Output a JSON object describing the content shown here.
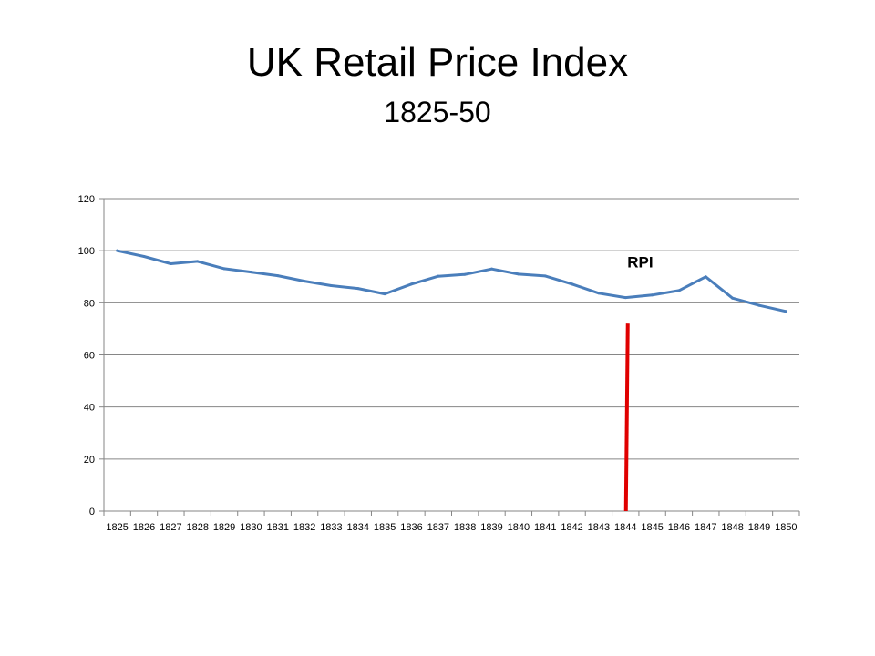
{
  "slide": {
    "title": "UK Retail Price Index",
    "subtitle": "1825-50"
  },
  "chart_data": {
    "type": "line",
    "x": [
      "1825",
      "1826",
      "1827",
      "1828",
      "1829",
      "1830",
      "1831",
      "1832",
      "1833",
      "1834",
      "1835",
      "1836",
      "1837",
      "1838",
      "1839",
      "1840",
      "1841",
      "1842",
      "1843",
      "1844",
      "1845",
      "1846",
      "1847",
      "1848",
      "1849",
      "1850"
    ],
    "series": [
      {
        "name": "RPI",
        "values": [
          100,
          97.8,
          95,
          95.9,
          93.1,
          91.8,
          90.4,
          88.3,
          86.6,
          85.5,
          83.4,
          87.2,
          90.2,
          90.9,
          93,
          91,
          90.3,
          87.2,
          83.7,
          82,
          83,
          84.7,
          90,
          81.8,
          79,
          76.7
        ],
        "color": "#4a7ebb"
      }
    ],
    "ylim": [
      0,
      120
    ],
    "yticks": [
      0,
      20,
      40,
      60,
      80,
      100,
      120
    ],
    "grid": true,
    "legend": "none",
    "annotations": [
      {
        "text": "RPI",
        "kind": "series-label"
      },
      {
        "kind": "vertical-marker",
        "x": "1844",
        "from": 0,
        "to": 72,
        "color": "#e00000"
      }
    ],
    "xlabel": "",
    "ylabel": ""
  }
}
